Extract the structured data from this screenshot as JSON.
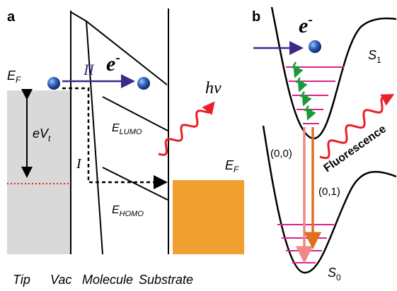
{
  "panel_a": {
    "label": "a",
    "tip_fermi": {
      "main": "E",
      "sub": "F"
    },
    "path_two": "II",
    "electron": {
      "main": "e",
      "sup": "-"
    },
    "photon": "hν",
    "bias": {
      "main": "eV",
      "sub": "t"
    },
    "lumo": {
      "main": "E",
      "sub": "LUMO"
    },
    "path_one": "I",
    "substrate_fermi": {
      "main": "E",
      "sub": "F"
    },
    "homo": {
      "main": "E",
      "sub": "HOMO"
    },
    "regions": [
      "Tip",
      "Vac",
      "Molecule",
      "Substrate"
    ]
  },
  "panel_b": {
    "label": "b",
    "electron": {
      "main": "e",
      "sup": "-"
    },
    "excited_state": {
      "main": "S",
      "sub": "1"
    },
    "emission": "Fluorescence",
    "transition_00": "(0,0)",
    "transition_01": "(0,1)",
    "ground_state": {
      "main": "S",
      "sub": "0"
    }
  }
}
